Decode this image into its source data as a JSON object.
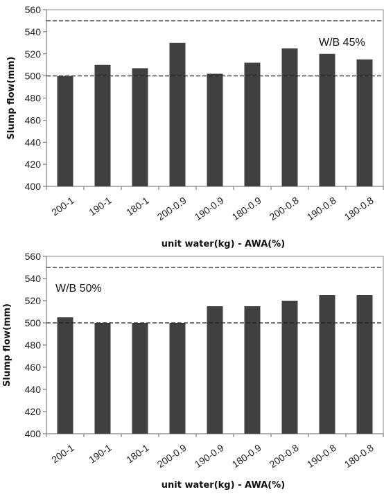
{
  "chart_data": [
    {
      "type": "bar",
      "categories": [
        "200-1",
        "190-1",
        "180-1",
        "200-0.9",
        "190-0.9",
        "180-0.9",
        "200-0.8",
        "190-0.8",
        "180-0.8"
      ],
      "values": [
        500,
        510,
        507,
        530,
        502,
        512,
        525,
        520,
        515
      ],
      "xlabel": "unit water(kg) - AWA(%)",
      "ylabel": "Slump flow(mm)",
      "ylim": [
        400,
        560
      ],
      "yticks": [
        400,
        420,
        440,
        460,
        480,
        500,
        520,
        540,
        560
      ],
      "reference_lines": [
        500,
        550
      ],
      "annotation": "W/B 45%",
      "grid": false,
      "bar_color": "#404040"
    },
    {
      "type": "bar",
      "categories": [
        "200-1",
        "190-1",
        "180-1",
        "200-0.9",
        "190-0.9",
        "180-0.9",
        "200-0.8",
        "190-0.8",
        "180-0.8"
      ],
      "values": [
        505,
        500,
        500,
        500,
        515,
        515,
        520,
        525,
        525
      ],
      "xlabel": "unit water(kg) - AWA(%)",
      "ylabel": "Slump flow(mm)",
      "ylim": [
        400,
        560
      ],
      "yticks": [
        400,
        420,
        440,
        460,
        480,
        500,
        520,
        540,
        560
      ],
      "reference_lines": [
        500,
        550
      ],
      "annotation": "W/B 50%",
      "grid": false,
      "bar_color": "#404040"
    }
  ]
}
